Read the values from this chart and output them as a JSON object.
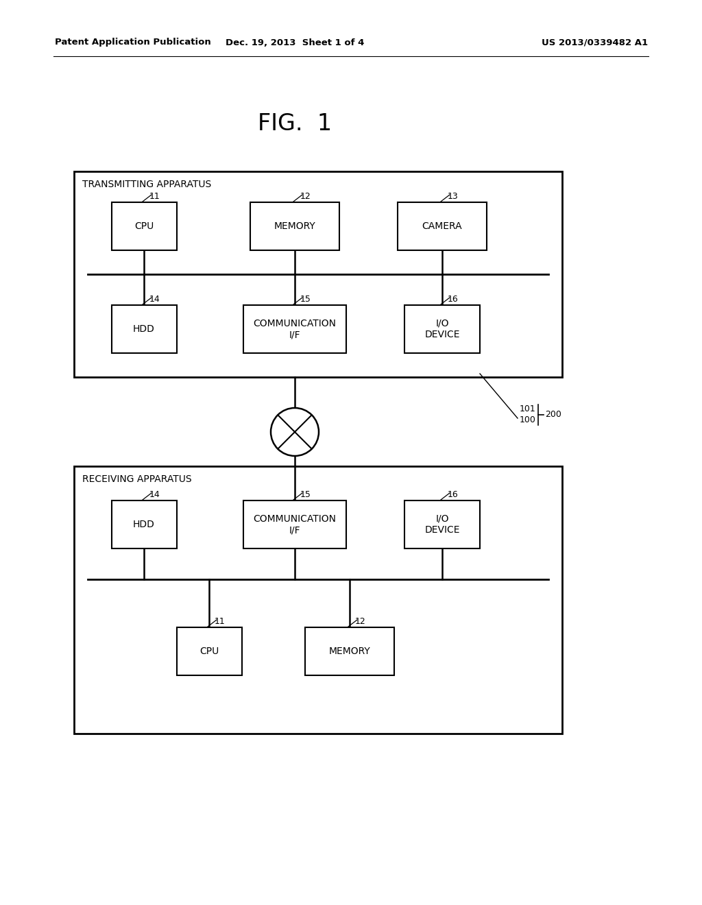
{
  "bg_color": "#ffffff",
  "header_left": "Patent Application Publication",
  "header_center": "Dec. 19, 2013  Sheet 1 of 4",
  "header_right": "US 2013/0339482 A1",
  "fig_title": "FIG.  1",
  "transmitting_label": "TRANSMITTING APPARATUS",
  "receiving_label": "RECEIVING APPARATUS",
  "label_101": "101",
  "label_100": "100",
  "label_200": "200"
}
